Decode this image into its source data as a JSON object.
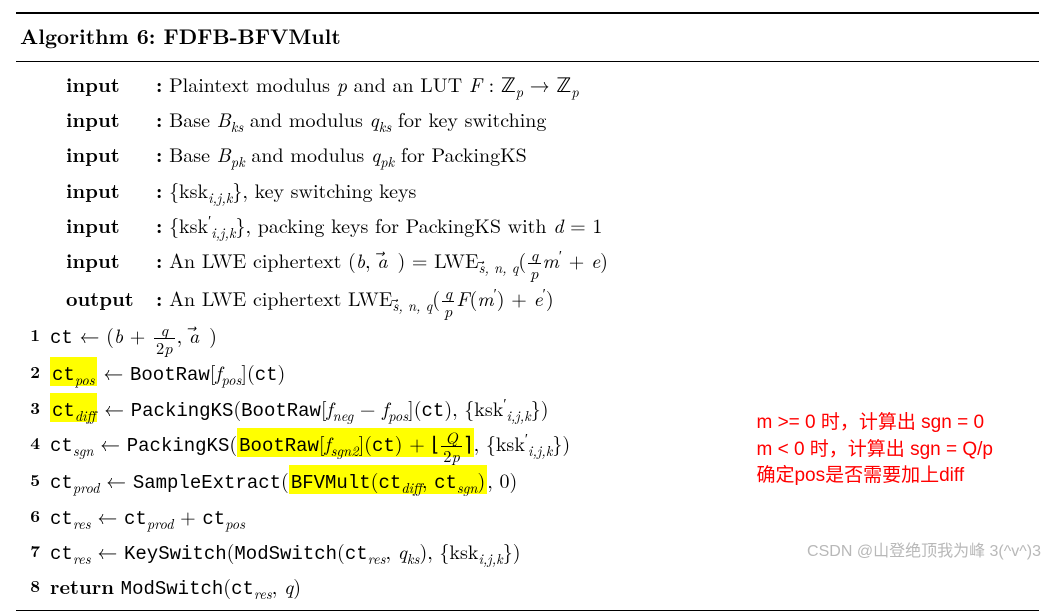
{
  "title": "Algorithm 6: FDFB-BFVMult",
  "inputs": [
    {
      "label": "input",
      "html": "Plaintext modulus <span class='it'>p</span> and an LUT <span class='it'>F</span> : ℤ<span class='sub'>p</span> → ℤ<span class='sub'>p</span>"
    },
    {
      "label": "input",
      "html": "Base <span class='it'>B<span class='sub'>ks</span></span> and modulus <span class='it'>q<span class='sub'>ks</span></span> for key switching"
    },
    {
      "label": "input",
      "html": "Base <span class='it'>B<span class='sub'>pk</span></span> and modulus <span class='it'>q<span class='sub'>pk</span></span> for PackingKS"
    },
    {
      "label": "input",
      "html": "{ksk<span class='sub'>i,j,k</span>}, key switching keys"
    },
    {
      "label": "input",
      "html": "{ksk<span class='sup'>′</span><span class='sub'>i,j,k</span>}, packing keys for PackingKS with <span class='it'>d</span> = 1"
    },
    {
      "label": "input",
      "html": "An LWE ciphertext (<span class='it'>b</span>, <span class='vec it'>a</span>&nbsp;) = LWE<span class='sub'><span class='vec'>s</span>, n, q</span>(<span class='frac'><span class='fn'><span class='it'>q</span></span><span class='fd'><span class='it'>p</span></span></span><span class='it'>m</span><span class='sup'>′</span> + <span class='it'>e</span>)"
    }
  ],
  "output": {
    "label": "output",
    "html": "An LWE ciphertext LWE<span class='sub'><span class='vec'>s</span>, n, q</span>(<span class='frac'><span class='fn'><span class='it'>q</span></span><span class='fd'><span class='it'>p</span></span></span><span class='it'>F</span>(<span class='it'>m</span><span class='sup'>′</span>) + <span class='it'>e</span><span class='sup'>′</span>)"
  },
  "steps": [
    {
      "n": "1",
      "html": "<span class='tt'>ct</span> ← (<span class='it'>b</span> + <span class='frac'><span class='fn'><span class='it'>q</span></span><span class='fd'>2<span class='it'>p</span></span></span>, <span class='vec it'>a</span>&nbsp;)"
    },
    {
      "n": "2",
      "html": "<span class='hl'><span class='tt'>ct</span><span class='sub'>pos</span></span> ← <span class='tt'>BootRaw</span>[<span class='it'>f<span class='sub'>pos</span></span>](<span class='tt'>ct</span>)"
    },
    {
      "n": "3",
      "html": "<span class='hl'><span class='tt'>ct</span><span class='sub'>diff</span></span> ← <span class='tt'>PackingKS</span>(<span class='tt'>BootRaw</span>[<span class='it'>f<span class='sub'>neg</span></span> − <span class='it'>f<span class='sub'>pos</span></span>](<span class='tt'>ct</span>), {ksk<span class='sup'>′</span><span class='sub'>i,j,k</span>})"
    },
    {
      "n": "4",
      "html": "<span class='tt'>ct</span><span class='sub'>sgn</span> ← <span class='tt'>PackingKS</span>(<span class='hl'><span class='tt'>BootRaw</span>[<span class='it'>f<span class='sub'>sgn2</span></span>](<span class='tt'>ct</span>) + ⌊<span class='frac'><span class='fn'><span class='it'>Q</span></span><span class='fd'>2<span class='it'>p</span></span></span>⌉</span>, {ksk<span class='sup'>′</span><span class='sub'>i,j,k</span>})"
    },
    {
      "n": "5",
      "html": "<span class='tt'>ct</span><span class='sub'>prod</span> ← <span class='tt'>SampleExtract</span>(<span class='hl'><span class='tt'>BFVMult</span>(<span class='tt'>ct</span><span class='sub'>diff</span>, <span class='tt'>ct</span><span class='sub'>sgn</span>)</span>, 0)"
    },
    {
      "n": "6",
      "html": "<span class='tt'>ct</span><span class='sub'>res</span> ← <span class='tt'>ct</span><span class='sub'>prod</span> + <span class='tt'>ct</span><span class='sub'>pos</span>"
    },
    {
      "n": "7",
      "html": "<span class='tt'>ct</span><span class='sub'>res</span> ← <span class='tt'>KeySwitch</span>(<span class='tt'>ModSwitch</span>(<span class='tt'>ct</span><span class='sub'>res</span>, <span class='it'>q<span class='sub'>ks</span></span>), {ksk<span class='sub'>i,j,k</span>})"
    },
    {
      "n": "8",
      "html": "<b>return</b> <span class='tt'>ModSwitch</span>(<span class='tt'>ct</span><span class='sub'>res</span>, <span class='it'>q</span>)"
    }
  ],
  "annotation": {
    "line1": "m >= 0 时，计算出 sgn = 0",
    "line2": "m <  0 时，计算出 sgn = Q/p",
    "line3": "确定pos是否需要加上diff",
    "color": "#ff0000"
  },
  "watermark": "CSDN @山登绝顶我为峰 3(^v^)3",
  "highlight_color": "#ffff00"
}
